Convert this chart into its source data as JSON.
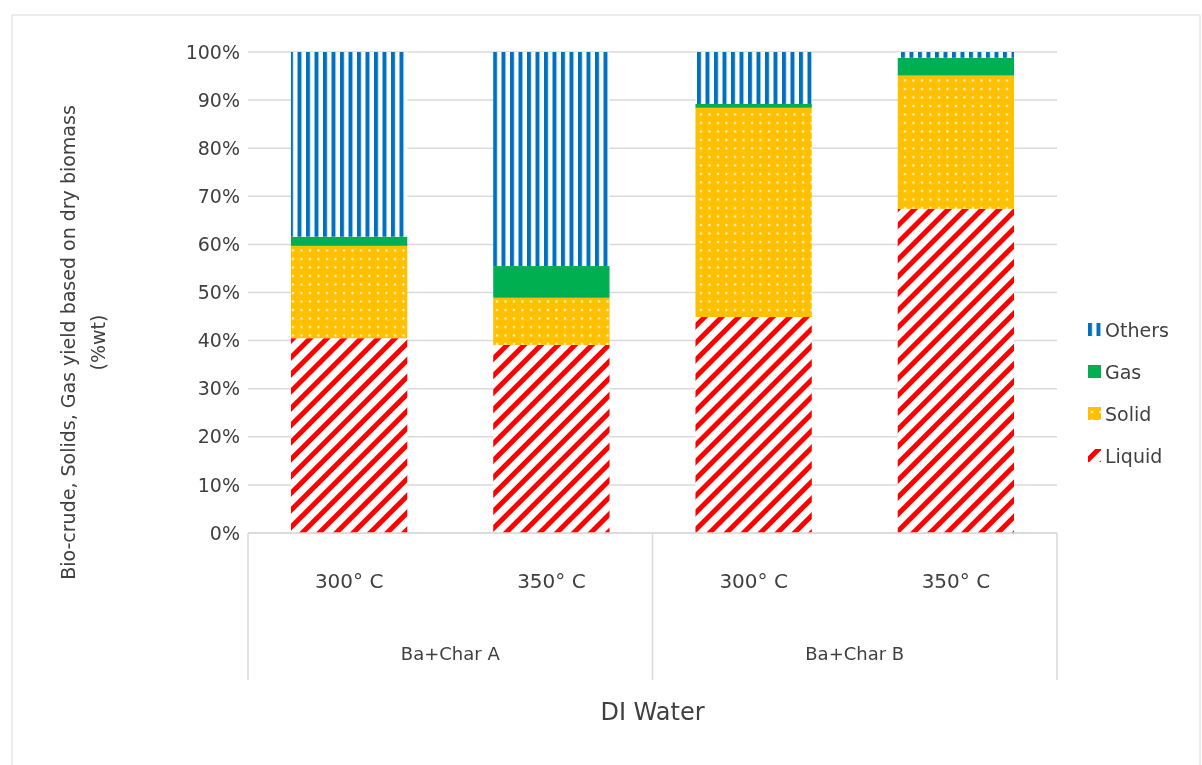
{
  "chart_data": {
    "type": "bar",
    "stacked": true,
    "xlabel": "DI Water",
    "ylabel": "Bio-crude, Solids, Gas yield based on dry biomass (%wt)",
    "categories": [
      "300° C",
      "350° C",
      "300° C",
      "350° C"
    ],
    "annotations": [
      "Ba+Char A",
      "Ba+Char B"
    ],
    "series": [
      {
        "name": "Liquid",
        "color": "#ff0000",
        "values": [
          40.5,
          39.1,
          44.9,
          67.4
        ]
      },
      {
        "name": "Solid",
        "color": "#ffc000",
        "values": [
          19.2,
          9.8,
          43.5,
          27.7
        ]
      },
      {
        "name": "Gas",
        "color": "#00b050",
        "values": [
          1.9,
          6.6,
          0.8,
          3.7
        ]
      },
      {
        "name": "Others",
        "color": "#0070c0",
        "values": [
          38.4,
          44.5,
          10.8,
          1.2
        ]
      }
    ],
    "ylim": [
      0,
      100
    ],
    "yticks": [
      {
        "value": 0,
        "label": "0%"
      },
      {
        "value": 10,
        "label": "10%"
      },
      {
        "value": 20,
        "label": "20%"
      },
      {
        "value": 30,
        "label": "30%"
      },
      {
        "value": 40,
        "label": "40%"
      },
      {
        "value": 50,
        "label": "50%"
      },
      {
        "value": 60,
        "label": "60%"
      },
      {
        "value": 70,
        "label": "70%"
      },
      {
        "value": 80,
        "label": "80%"
      },
      {
        "value": 90,
        "label": "90%"
      },
      {
        "value": 100,
        "label": "100%"
      }
    ],
    "grid": "y",
    "legend": "right"
  }
}
